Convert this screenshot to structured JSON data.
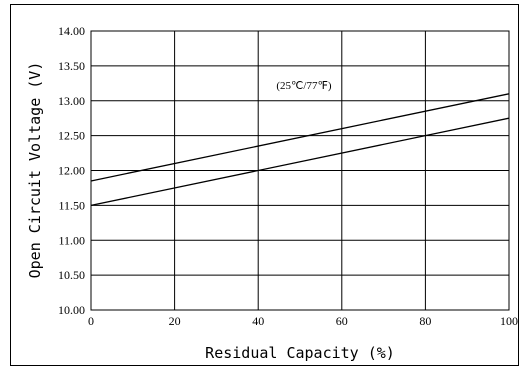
{
  "chart_data": {
    "type": "line",
    "xlabel": "Residual Capacity (%)",
    "ylabel": "Open Circuit Voltage (V)",
    "annotation": "(25℃/77℉)",
    "xlim": [
      0,
      100
    ],
    "ylim": [
      10.0,
      14.0
    ],
    "x_ticks": [
      "0",
      "20",
      "40",
      "60",
      "80",
      "100"
    ],
    "y_ticks": [
      "10.00",
      "10.50",
      "11.00",
      "11.50",
      "12.00",
      "12.50",
      "13.00",
      "13.50",
      "14.00"
    ],
    "grid": true,
    "series": [
      {
        "x": [
          0,
          100
        ],
        "values": [
          11.85,
          13.1
        ]
      },
      {
        "x": [
          0,
          100
        ],
        "values": [
          11.5,
          12.75
        ]
      }
    ]
  }
}
